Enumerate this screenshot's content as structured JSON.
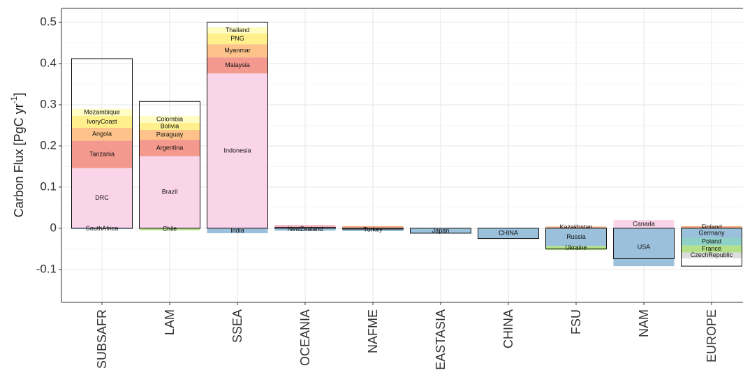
{
  "chart_data": {
    "type": "stacked-bar",
    "ylabel": "Carbon Flux [PgC yr",
    "ylabel_sup": "-1",
    "ylabel_end": "]",
    "categories": [
      "SUBSAFR",
      "LAM",
      "SSEA",
      "OCEANIA",
      "NAFME",
      "EASTASIA",
      "CHINA",
      "FSU",
      "NAM",
      "EUROPE"
    ],
    "totals": [
      0.412,
      0.308,
      0.5,
      0.002,
      -0.002,
      -0.012,
      -0.025,
      -0.05,
      -0.074,
      -0.092
    ],
    "segments": [
      [
        {
          "name": "DRC",
          "value": 0.146,
          "color": "#fad4e8"
        },
        {
          "name": "Tanzania",
          "value": 0.067,
          "color": "#f4998e"
        },
        {
          "name": "Angola",
          "value": 0.031,
          "color": "#fdc38a"
        },
        {
          "name": "IvoryCoast",
          "value": 0.029,
          "color": "#fff08c"
        },
        {
          "name": "Mozambique",
          "value": 0.017,
          "color": "#fffcc4"
        },
        {
          "name": "SouthAfrica",
          "value": -0.002,
          "color": "#9ac0dc"
        }
      ],
      [
        {
          "name": "Brazil",
          "value": 0.175,
          "color": "#fad4e8"
        },
        {
          "name": "Argentina",
          "value": 0.04,
          "color": "#f4998e"
        },
        {
          "name": "Paraguay",
          "value": 0.024,
          "color": "#fdc38a"
        },
        {
          "name": "Bolivia",
          "value": 0.017,
          "color": "#fff08c"
        },
        {
          "name": "Colombia",
          "value": 0.017,
          "color": "#fffcc4"
        },
        {
          "name": "Chile",
          "value": -0.005,
          "color": "#b5e08a"
        }
      ],
      [
        {
          "name": "Indonesia",
          "value": 0.376,
          "color": "#fad4e8"
        },
        {
          "name": "Malaysia",
          "value": 0.039,
          "color": "#f4998e"
        },
        {
          "name": "Myanmar",
          "value": 0.032,
          "color": "#fdc38a"
        },
        {
          "name": "PNG",
          "value": 0.026,
          "color": "#fff08c"
        },
        {
          "name": "Thailand",
          "value": 0.015,
          "color": "#fffcc4"
        },
        {
          "name": "India",
          "value": -0.012,
          "color": "#9ac0dc"
        }
      ],
      [
        {
          "name": null,
          "value": 0.008,
          "color": "#f4b6c2"
        },
        {
          "name": "NewZealand",
          "value": -0.006,
          "color": "#9ac0dc"
        }
      ],
      [
        {
          "name": null,
          "value": 0.005,
          "color": "#f4a882"
        },
        {
          "name": "Turkey",
          "value": -0.007,
          "color": "#9ac0dc"
        }
      ],
      [
        {
          "name": "Japan",
          "value": -0.012,
          "color": "#9ac0dc"
        }
      ],
      [
        {
          "name": "CHINA",
          "value": -0.025,
          "color": "#9ac0dc"
        }
      ],
      [
        {
          "name": "Kazakhstan",
          "value": 0.004,
          "color": "#f4a882"
        },
        {
          "name": "Russia",
          "value": -0.043,
          "color": "#9ac0dc"
        },
        {
          "name": "Ukraine",
          "value": -0.01,
          "color": "#b5e08a"
        }
      ],
      [
        {
          "name": "Canada",
          "value": 0.02,
          "color": "#fad4e8"
        },
        {
          "name": "USA",
          "value": -0.092,
          "color": "#9ac0dc"
        }
      ],
      [
        {
          "name": "Finland",
          "value": 0.005,
          "color": "#f4a882"
        },
        {
          "name": "Germany",
          "value": -0.024,
          "color": "#9ac0dc"
        },
        {
          "name": "Poland",
          "value": -0.018,
          "color": "#8ed1c6"
        },
        {
          "name": "France",
          "value": -0.017,
          "color": "#b5e08a"
        },
        {
          "name": "CzechRepublic",
          "value": -0.014,
          "color": "#dddddd"
        },
        {
          "name": null,
          "value": -0.019,
          "color": "#ffffff"
        }
      ]
    ],
    "ylim": [
      -0.18,
      0.534
    ],
    "yticks": [
      -0.1,
      0.0,
      0.1,
      0.2,
      0.3,
      0.4,
      0.5
    ],
    "grid": true
  }
}
